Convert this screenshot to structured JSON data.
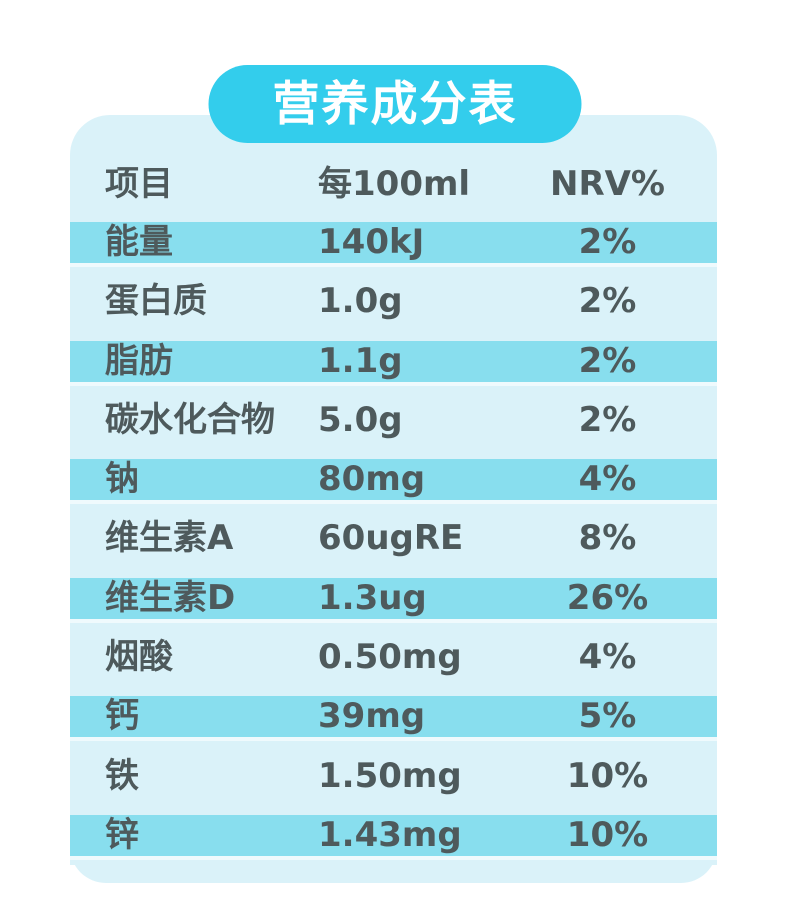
{
  "title": "营养成分表",
  "colors": {
    "pill": "#33cdec",
    "sheet": "#daf2f9",
    "band": "#88deee",
    "separator": "#effafd",
    "text": "#4e5a5c"
  },
  "table": {
    "headers": [
      "项目",
      "每100ml",
      "NRV%"
    ],
    "rows": [
      {
        "name": "能量",
        "value": "140kJ",
        "nrv": "2%",
        "highlight": true
      },
      {
        "name": "蛋白质",
        "value": "1.0g",
        "nrv": "2%",
        "highlight": false
      },
      {
        "name": "脂肪",
        "value": "1.1g",
        "nrv": "2%",
        "highlight": true
      },
      {
        "name": "碳水化合物",
        "value": "5.0g",
        "nrv": "2%",
        "highlight": false
      },
      {
        "name": "钠",
        "value": "80mg",
        "nrv": "4%",
        "highlight": true
      },
      {
        "name": "维生素A",
        "value": "60ugRE",
        "nrv": "8%",
        "highlight": false
      },
      {
        "name": "维生素D",
        "value": "1.3ug",
        "nrv": "26%",
        "highlight": true
      },
      {
        "name": "烟酸",
        "value": "0.50mg",
        "nrv": "4%",
        "highlight": false
      },
      {
        "name": "钙",
        "value": "39mg",
        "nrv": "5%",
        "highlight": true
      },
      {
        "name": "铁",
        "value": "1.50mg",
        "nrv": "10%",
        "highlight": false
      },
      {
        "name": "锌",
        "value": "1.43mg",
        "nrv": "10%",
        "highlight": true
      }
    ]
  }
}
